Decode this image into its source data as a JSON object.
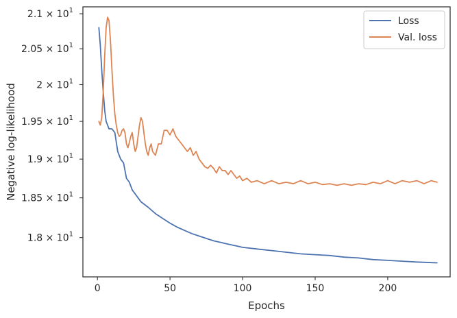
{
  "chart_data": {
    "type": "line",
    "xlabel": "Epochs",
    "ylabel": "Negative log-likelihood",
    "xlim": [
      -10,
      243
    ],
    "ylim": [
      17.52,
      21.1
    ],
    "y_scale": "log",
    "grid": false,
    "legend_position": "top-right",
    "x_ticks": [
      0,
      50,
      100,
      150,
      200
    ],
    "y_ticks": [
      {
        "value": 18.0,
        "mantissa": "1.8"
      },
      {
        "value": 18.5,
        "mantissa": "1.85"
      },
      {
        "value": 19.0,
        "mantissa": "1.9"
      },
      {
        "value": 19.5,
        "mantissa": "1.95"
      },
      {
        "value": 20.0,
        "mantissa": "2"
      },
      {
        "value": 20.5,
        "mantissa": "2.05"
      },
      {
        "value": 21.0,
        "mantissa": "2.1"
      }
    ],
    "tick_base": "10",
    "tick_exponent": "1",
    "series": [
      {
        "name": "Loss",
        "color": "#4c72b0",
        "x": [
          1,
          2,
          3,
          4,
          5,
          6,
          8,
          10,
          12,
          14,
          16,
          18,
          20,
          22,
          24,
          26,
          28,
          30,
          35,
          40,
          45,
          50,
          55,
          60,
          65,
          70,
          75,
          80,
          85,
          90,
          95,
          100,
          110,
          120,
          130,
          140,
          150,
          160,
          170,
          180,
          190,
          200,
          210,
          220,
          234
        ],
        "y": [
          20.8,
          20.55,
          20.2,
          19.9,
          19.65,
          19.5,
          19.4,
          19.4,
          19.35,
          19.1,
          19.0,
          18.95,
          18.75,
          18.7,
          18.6,
          18.55,
          18.5,
          18.45,
          18.38,
          18.3,
          18.24,
          18.18,
          18.13,
          18.09,
          18.05,
          18.02,
          17.99,
          17.96,
          17.94,
          17.92,
          17.9,
          17.88,
          17.86,
          17.84,
          17.82,
          17.8,
          17.79,
          17.78,
          17.76,
          17.75,
          17.73,
          17.72,
          17.71,
          17.7,
          17.69
        ]
      },
      {
        "name": "Val. loss",
        "color": "#dd8452",
        "x": [
          1,
          2,
          3,
          4,
          5,
          6,
          7,
          8,
          9,
          10,
          11,
          12,
          13,
          14,
          15,
          16,
          17,
          18,
          19,
          20,
          21,
          22,
          23,
          24,
          25,
          26,
          27,
          28,
          29,
          30,
          31,
          32,
          33,
          34,
          35,
          36,
          37,
          38,
          40,
          42,
          44,
          46,
          48,
          50,
          52,
          54,
          56,
          58,
          60,
          62,
          64,
          66,
          68,
          70,
          72,
          74,
          76,
          78,
          80,
          82,
          84,
          86,
          88,
          90,
          92,
          94,
          96,
          98,
          100,
          103,
          106,
          110,
          115,
          120,
          125,
          130,
          135,
          140,
          145,
          150,
          155,
          160,
          165,
          170,
          175,
          180,
          185,
          190,
          195,
          200,
          205,
          210,
          215,
          220,
          225,
          230,
          234
        ],
        "y": [
          19.5,
          19.45,
          19.55,
          19.9,
          20.4,
          20.8,
          20.95,
          20.9,
          20.6,
          20.2,
          19.85,
          19.6,
          19.45,
          19.35,
          19.3,
          19.32,
          19.38,
          19.4,
          19.35,
          19.2,
          19.15,
          19.22,
          19.3,
          19.35,
          19.2,
          19.1,
          19.15,
          19.3,
          19.45,
          19.55,
          19.5,
          19.35,
          19.2,
          19.1,
          19.05,
          19.15,
          19.2,
          19.1,
          19.05,
          19.2,
          19.2,
          19.38,
          19.38,
          19.32,
          19.4,
          19.3,
          19.25,
          19.2,
          19.15,
          19.1,
          19.15,
          19.05,
          19.1,
          19.0,
          18.95,
          18.9,
          18.88,
          18.92,
          18.88,
          18.82,
          18.9,
          18.85,
          18.85,
          18.8,
          18.85,
          18.8,
          18.75,
          18.78,
          18.72,
          18.75,
          18.7,
          18.72,
          18.68,
          18.72,
          18.68,
          18.7,
          18.68,
          18.72,
          18.68,
          18.7,
          18.67,
          18.68,
          18.66,
          18.68,
          18.66,
          18.68,
          18.67,
          18.7,
          18.68,
          18.72,
          18.68,
          18.72,
          18.7,
          18.72,
          18.68,
          18.72,
          18.7
        ]
      }
    ]
  }
}
